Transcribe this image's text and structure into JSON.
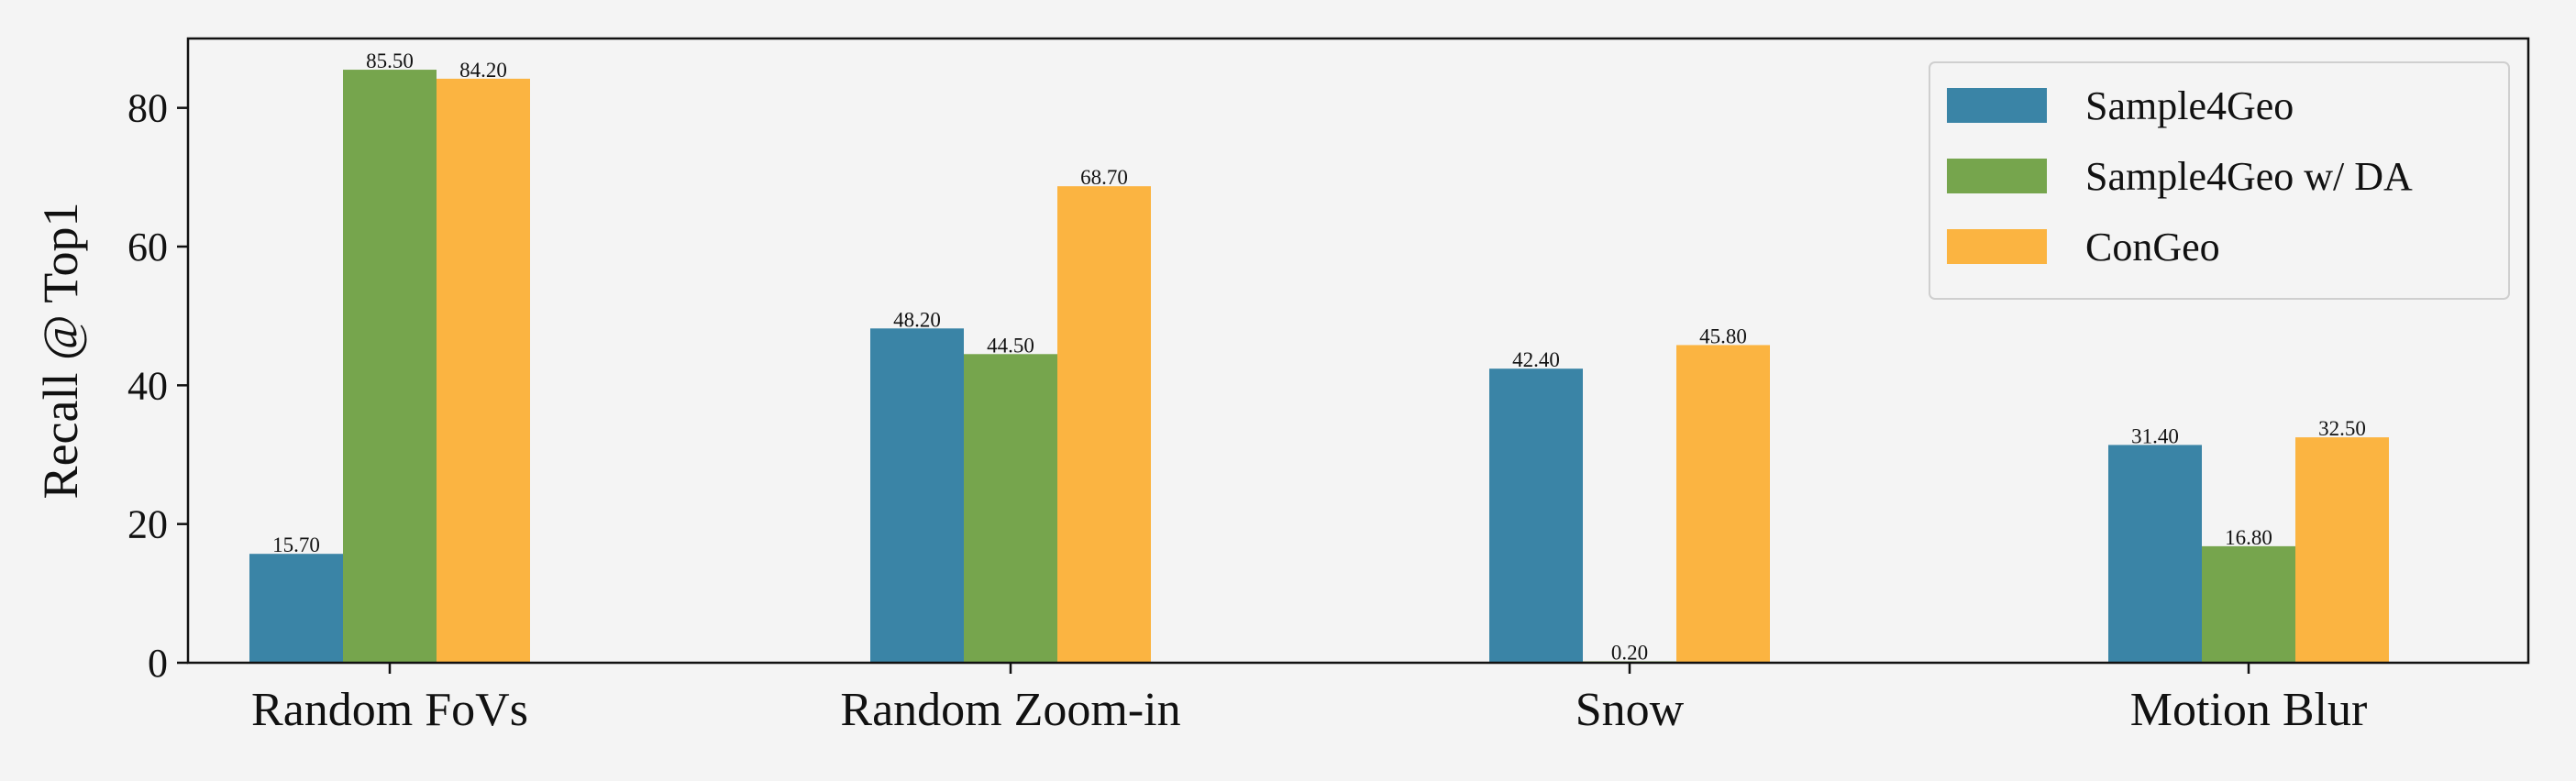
{
  "chart_data": {
    "type": "bar",
    "title": "",
    "xlabel": "",
    "ylabel": "Recall @ Top1",
    "ylim": [
      0,
      90
    ],
    "yticks": [
      0,
      20,
      40,
      60,
      80
    ],
    "grid": false,
    "legend_position": "top-right",
    "categories": [
      "Random FoVs",
      "Random Zoom-in",
      "Snow",
      "Motion Blur"
    ],
    "series": [
      {
        "name": "Sample4Geo",
        "color": "#3a84a6",
        "values": [
          15.7,
          48.2,
          42.4,
          31.4
        ],
        "labels": [
          "15.70",
          "48.20",
          "42.40",
          "31.40"
        ]
      },
      {
        "name": "Sample4Geo w/ DA",
        "color": "#76a54d",
        "values": [
          85.5,
          44.5,
          0.2,
          16.8
        ],
        "labels": [
          "85.50",
          "44.50",
          "0.20",
          "16.80"
        ]
      },
      {
        "name": "ConGeo",
        "color": "#fbb441",
        "values": [
          84.2,
          68.7,
          45.8,
          32.5
        ],
        "labels": [
          "84.20",
          "68.70",
          "45.80",
          "32.50"
        ]
      }
    ]
  }
}
